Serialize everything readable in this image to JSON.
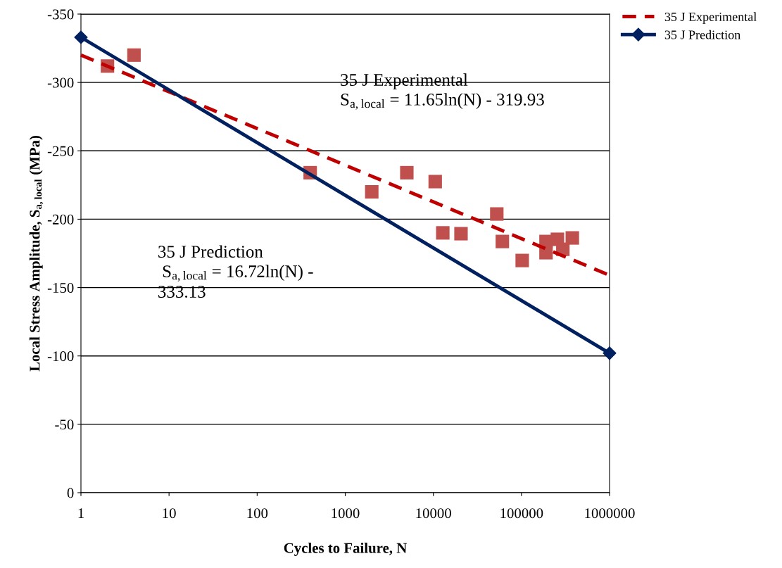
{
  "chart_data": {
    "type": "scatter",
    "xlabel": "Cycles to Failure, N",
    "ylabel": "Local Stress Amplitude, S$_{a,local}$ (MPa)",
    "log": "x",
    "xlim": [
      1,
      1000000
    ],
    "xticks": [
      1,
      10,
      100,
      1000,
      10000,
      100000,
      1000000
    ],
    "ylim": [
      0,
      -350
    ],
    "yticks": [
      0,
      -50,
      -100,
      -150,
      -200,
      -250,
      -300,
      -350
    ],
    "grid": "y",
    "legend": "top right",
    "series": [
      {
        "color": "#c0504d",
        "marker": "square",
        "x": [
          2,
          4,
          400,
          2000,
          5000,
          10500,
          12800,
          20600,
          52500,
          60700,
          102000,
          190000,
          190000,
          256000,
          295000,
          378000
        ],
        "values": [
          -312,
          -320,
          -234,
          -220,
          -234,
          -227.5,
          -190,
          -189.4,
          -203.8,
          -183.7,
          -169.8,
          -183.7,
          -175.5,
          -185.3,
          -178,
          -186.3
        ]
      },
      {
        "type": "line",
        "name": "35 J Experimental",
        "color": "#c00000",
        "line_style": "dashed",
        "marker": "none",
        "x": [
          1,
          1000000
        ],
        "values": [
          -320,
          -159
        ]
      },
      {
        "type": "line",
        "name": "35 J Prediction",
        "color": "#002060",
        "line_style": "solid",
        "marker": "diamond",
        "x": [
          1,
          1000000
        ],
        "values": [
          -333,
          -102
        ]
      }
    ],
    "annotations": [
      "35 J Experimental\nS$_{a,local}$ = 11.65ln(N) - 319.93",
      "35 J Prediction\n S$_{a,local}$ = 16.72ln(N) -\n333.13"
    ]
  }
}
